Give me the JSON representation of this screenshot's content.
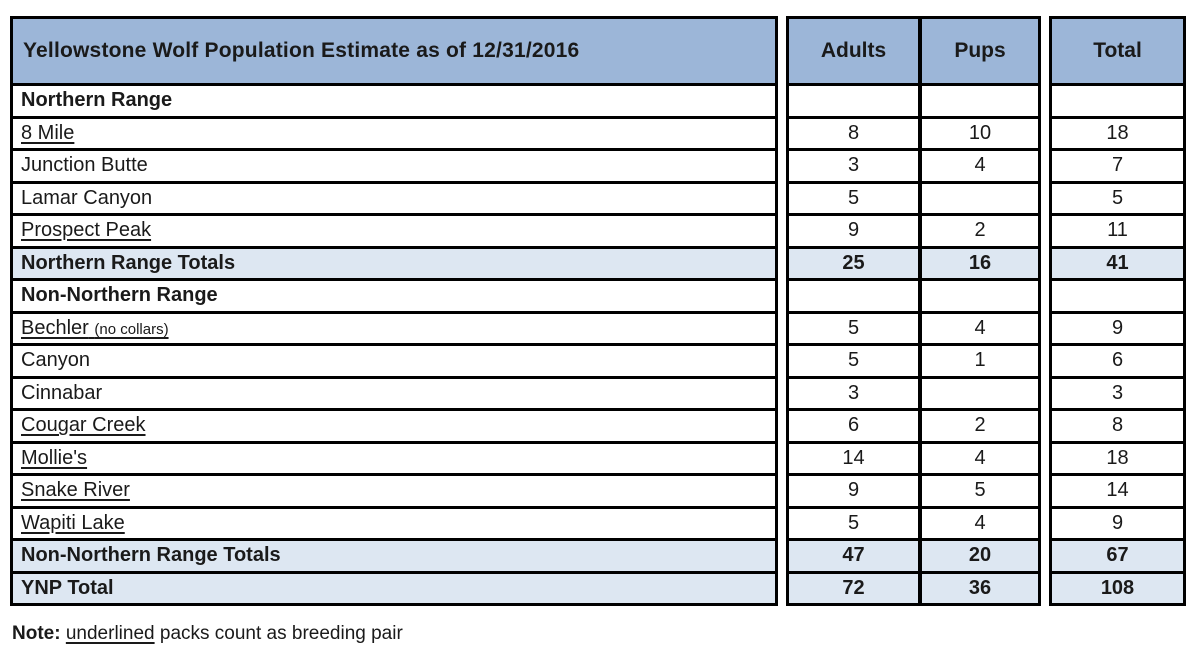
{
  "table": {
    "title": "Yellowstone Wolf Population Estimate as of 12/31/2016",
    "column_headers": {
      "adults": "Adults",
      "pups": "Pups",
      "total": "Total"
    },
    "rows": [
      {
        "type": "section",
        "label": "Northern Range",
        "underlined": false,
        "adults": "",
        "pups": "",
        "total": ""
      },
      {
        "type": "pack",
        "label": "8 Mile",
        "underlined": true,
        "adults": "8",
        "pups": "10",
        "total": "18"
      },
      {
        "type": "pack",
        "label": "Junction Butte",
        "underlined": false,
        "adults": "3",
        "pups": "4",
        "total": "7"
      },
      {
        "type": "pack",
        "label": "Lamar Canyon",
        "underlined": false,
        "adults": "5",
        "pups": "",
        "total": "5"
      },
      {
        "type": "pack",
        "label": "Prospect Peak",
        "underlined": true,
        "adults": "9",
        "pups": "2",
        "total": "11"
      },
      {
        "type": "totals",
        "label": "Northern Range Totals",
        "underlined": false,
        "adults": "25",
        "pups": "16",
        "total": "41"
      },
      {
        "type": "section",
        "label": "Non-Northern Range",
        "underlined": false,
        "adults": "",
        "pups": "",
        "total": ""
      },
      {
        "type": "pack",
        "label": "Bechler",
        "suffix": "(no collars)",
        "underlined": true,
        "adults": "5",
        "pups": "4",
        "total": "9"
      },
      {
        "type": "pack",
        "label": "Canyon",
        "underlined": false,
        "adults": "5",
        "pups": "1",
        "total": "6"
      },
      {
        "type": "pack",
        "label": "Cinnabar",
        "underlined": false,
        "adults": "3",
        "pups": "",
        "total": "3"
      },
      {
        "type": "pack",
        "label": "Cougar Creek",
        "underlined": true,
        "adults": "6",
        "pups": "2",
        "total": "8"
      },
      {
        "type": "pack",
        "label": "Mollie's",
        "underlined": true,
        "adults": "14",
        "pups": "4",
        "total": "18"
      },
      {
        "type": "pack",
        "label": "Snake River",
        "underlined": true,
        "adults": "9",
        "pups": "5",
        "total": "14"
      },
      {
        "type": "pack",
        "label": "Wapiti Lake",
        "underlined": true,
        "adults": "5",
        "pups": "4",
        "total": "9"
      },
      {
        "type": "totals",
        "label": "Non-Northern Range Totals",
        "underlined": false,
        "adults": "47",
        "pups": "20",
        "total": "67"
      },
      {
        "type": "totals",
        "label": "YNP Total",
        "underlined": false,
        "adults": "72",
        "pups": "36",
        "total": "108"
      }
    ],
    "colors": {
      "header_bg": "#9cb6d8",
      "totals_bg": "#dde7f2",
      "border": "#000000",
      "text": "#1a1a1a"
    }
  },
  "note": {
    "label": "Note:",
    "underlined_word": "underlined",
    "text": "packs count as breeding pair"
  }
}
